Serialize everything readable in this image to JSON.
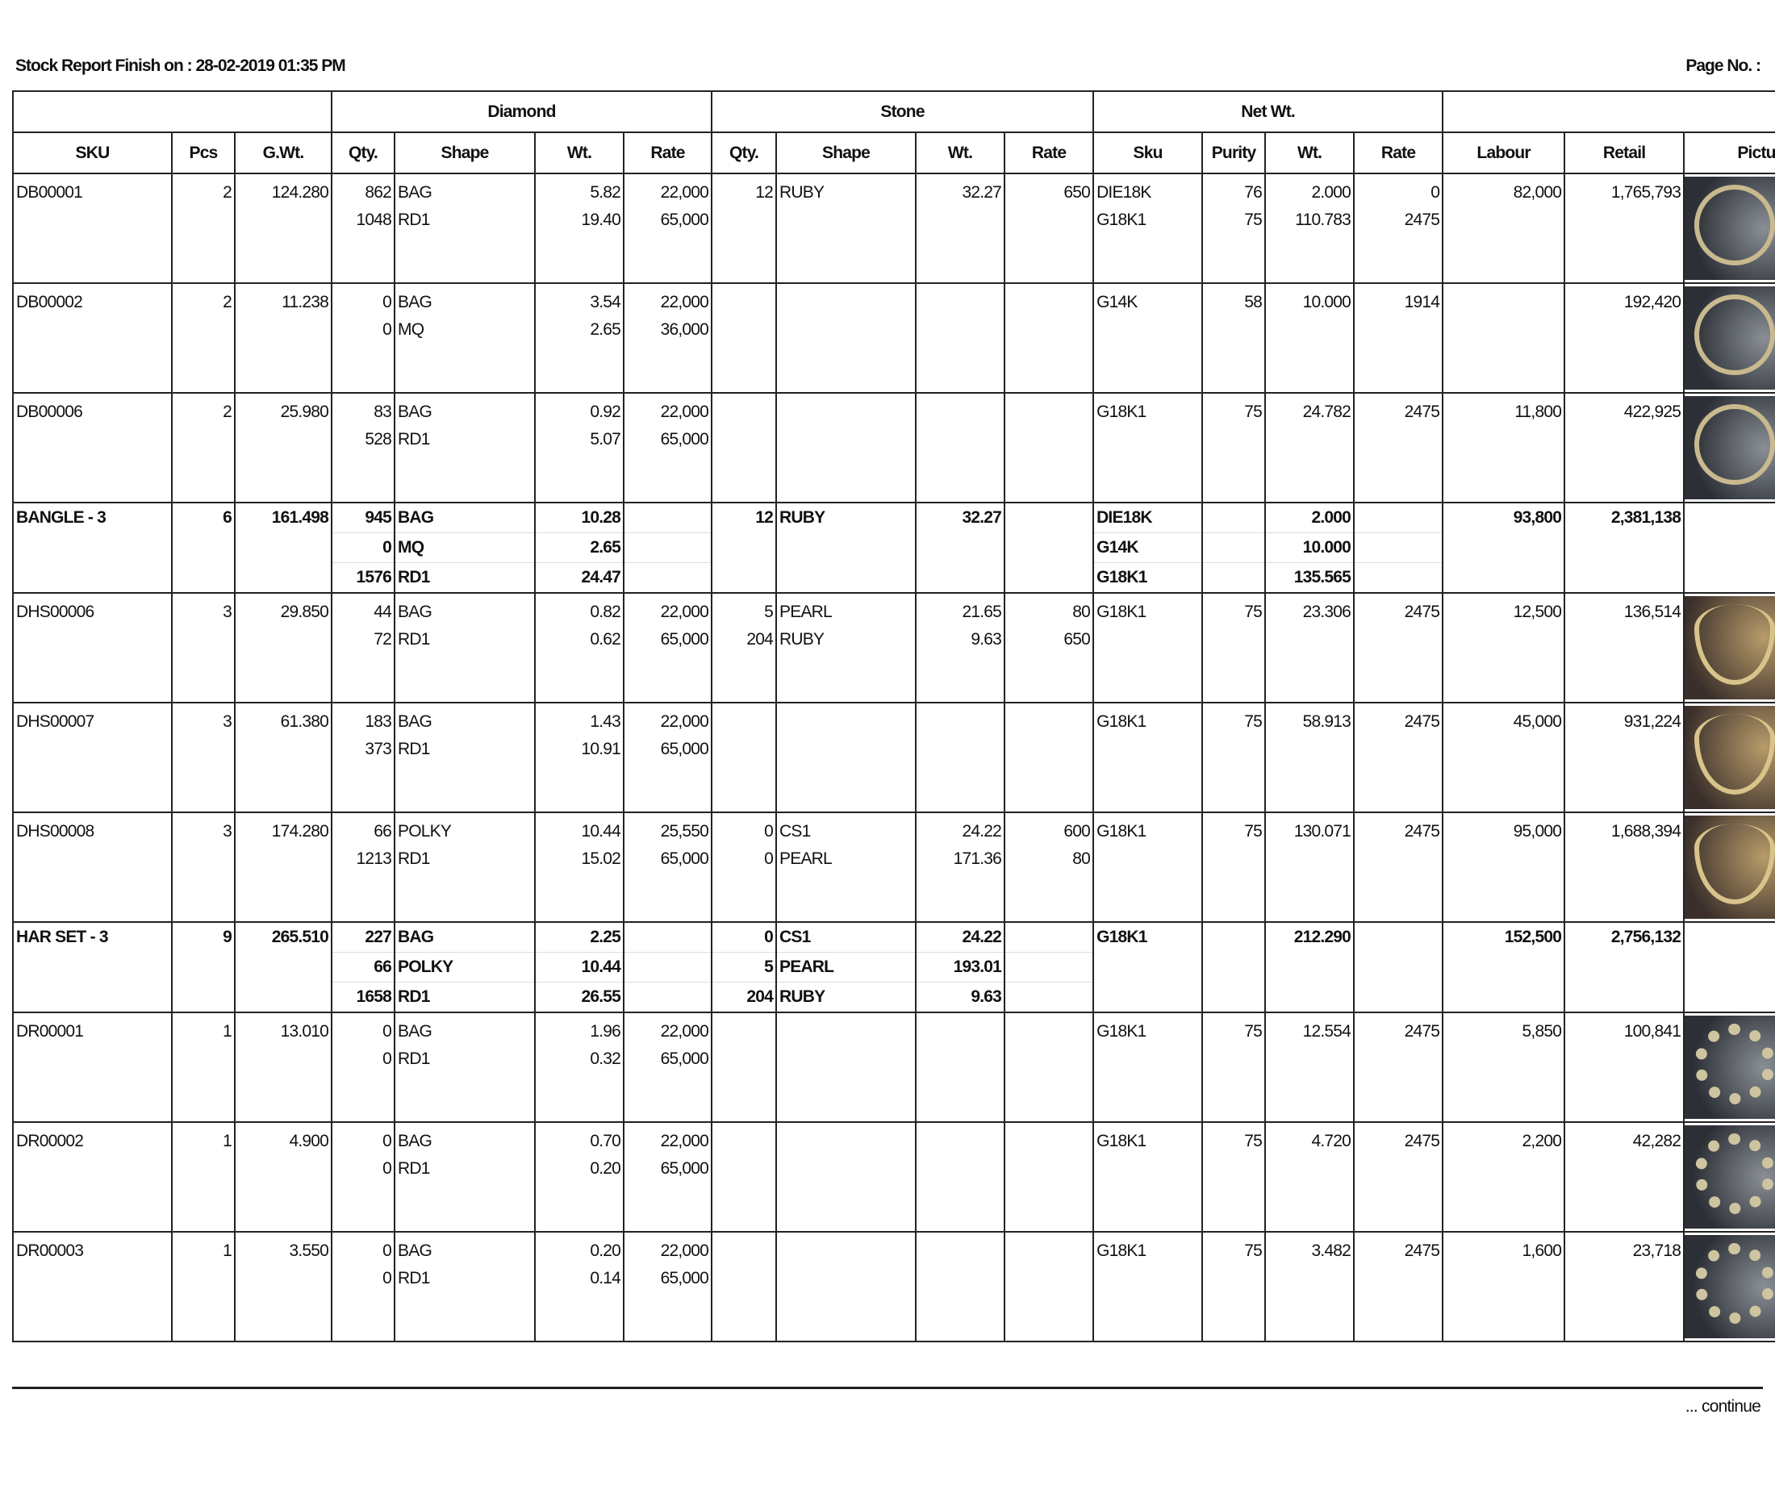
{
  "header": {
    "title": "Stock Report Finish on : 28-02-2019 01:35 PM",
    "page_label": "Page No. :"
  },
  "groups": {
    "diamond": "Diamond",
    "stone": "Stone",
    "net_wt": "Net Wt."
  },
  "columns": [
    "SKU",
    "Pcs",
    "G.Wt.",
    "Qty.",
    "Shape",
    "Wt.",
    "Rate",
    "Qty.",
    "Shape",
    "Wt.",
    "Rate",
    "Sku",
    "Purity",
    "Wt.",
    "Rate",
    "Labour",
    "Retail",
    "Picture"
  ],
  "rows": [
    {
      "type": "item",
      "sku": "DB00001",
      "pcs": "2",
      "gwt": "124.280",
      "diamond": [
        {
          "qty": "862",
          "shape": "BAG",
          "wt": "5.82",
          "rate": "22,000"
        },
        {
          "qty": "1048",
          "shape": "RD1",
          "wt": "19.40",
          "rate": "65,000"
        }
      ],
      "stone": [
        {
          "qty": "12",
          "shape": "RUBY",
          "wt": "32.27",
          "rate": "650"
        }
      ],
      "metal": [
        {
          "sku": "DIE18K",
          "purity": "76",
          "wt": "2.000",
          "rate": "0"
        },
        {
          "sku": "G18K1",
          "purity": "75",
          "wt": "110.783",
          "rate": "2475"
        }
      ],
      "labour": "82,000",
      "retail": "1,765,793",
      "picture": "bangle-photo"
    },
    {
      "type": "item",
      "sku": "DB00002",
      "pcs": "2",
      "gwt": "11.238",
      "diamond": [
        {
          "qty": "0",
          "shape": "BAG",
          "wt": "3.54",
          "rate": "22,000"
        },
        {
          "qty": "0",
          "shape": "MQ",
          "wt": "2.65",
          "rate": "36,000"
        }
      ],
      "stone": [],
      "metal": [
        {
          "sku": "G14K",
          "purity": "58",
          "wt": "10.000",
          "rate": "1914"
        }
      ],
      "labour": "",
      "retail": "192,420",
      "picture": "bangle-photo"
    },
    {
      "type": "item",
      "sku": "DB00006",
      "pcs": "2",
      "gwt": "25.980",
      "diamond": [
        {
          "qty": "83",
          "shape": "BAG",
          "wt": "0.92",
          "rate": "22,000"
        },
        {
          "qty": "528",
          "shape": "RD1",
          "wt": "5.07",
          "rate": "65,000"
        }
      ],
      "stone": [],
      "metal": [
        {
          "sku": "G18K1",
          "purity": "75",
          "wt": "24.782",
          "rate": "2475"
        }
      ],
      "labour": "11,800",
      "retail": "422,925",
      "picture": "bangle-photo"
    },
    {
      "type": "sum",
      "sku": "BANGLE - 3",
      "pcs": "6",
      "gwt": "161.498",
      "diamond": [
        {
          "qty": "945",
          "shape": "BAG",
          "wt": "10.28",
          "rate": ""
        },
        {
          "qty": "0",
          "shape": "MQ",
          "wt": "2.65",
          "rate": ""
        },
        {
          "qty": "1576",
          "shape": "RD1",
          "wt": "24.47",
          "rate": ""
        }
      ],
      "stone": [
        {
          "qty": "12",
          "shape": "RUBY",
          "wt": "32.27",
          "rate": ""
        }
      ],
      "metal": [
        {
          "sku": "DIE18K",
          "purity": "",
          "wt": "2.000",
          "rate": ""
        },
        {
          "sku": "G14K",
          "purity": "",
          "wt": "10.000",
          "rate": ""
        },
        {
          "sku": "G18K1",
          "purity": "",
          "wt": "135.565",
          "rate": ""
        }
      ],
      "labour": "93,800",
      "retail": "2,381,138"
    },
    {
      "type": "item",
      "sku": "DHS00006",
      "pcs": "3",
      "gwt": "29.850",
      "diamond": [
        {
          "qty": "44",
          "shape": "BAG",
          "wt": "0.82",
          "rate": "22,000"
        },
        {
          "qty": "72",
          "shape": "RD1",
          "wt": "0.62",
          "rate": "65,000"
        }
      ],
      "stone": [
        {
          "qty": "5",
          "shape": "PEARL",
          "wt": "21.65",
          "rate": "80"
        },
        {
          "qty": "204",
          "shape": "RUBY",
          "wt": "9.63",
          "rate": "650"
        }
      ],
      "metal": [
        {
          "sku": "G18K1",
          "purity": "75",
          "wt": "23.306",
          "rate": "2475"
        }
      ],
      "labour": "12,500",
      "retail": "136,514",
      "picture": "necklace-set-photo"
    },
    {
      "type": "item",
      "sku": "DHS00007",
      "pcs": "3",
      "gwt": "61.380",
      "diamond": [
        {
          "qty": "183",
          "shape": "BAG",
          "wt": "1.43",
          "rate": "22,000"
        },
        {
          "qty": "373",
          "shape": "RD1",
          "wt": "10.91",
          "rate": "65,000"
        }
      ],
      "stone": [],
      "metal": [
        {
          "sku": "G18K1",
          "purity": "75",
          "wt": "58.913",
          "rate": "2475"
        }
      ],
      "labour": "45,000",
      "retail": "931,224",
      "picture": "necklace-set-photo"
    },
    {
      "type": "item",
      "sku": "DHS00008",
      "pcs": "3",
      "gwt": "174.280",
      "diamond": [
        {
          "qty": "66",
          "shape": "POLKY",
          "wt": "10.44",
          "rate": "25,550"
        },
        {
          "qty": "1213",
          "shape": "RD1",
          "wt": "15.02",
          "rate": "65,000"
        }
      ],
      "stone": [
        {
          "qty": "0",
          "shape": "CS1",
          "wt": "24.22",
          "rate": "600"
        },
        {
          "qty": "0",
          "shape": "PEARL",
          "wt": "171.36",
          "rate": "80"
        }
      ],
      "metal": [
        {
          "sku": "G18K1",
          "purity": "75",
          "wt": "130.071",
          "rate": "2475"
        }
      ],
      "labour": "95,000",
      "retail": "1,688,394",
      "picture": "necklace-set-photo"
    },
    {
      "type": "sum",
      "sku": "HAR SET - 3",
      "pcs": "9",
      "gwt": "265.510",
      "diamond": [
        {
          "qty": "227",
          "shape": "BAG",
          "wt": "2.25",
          "rate": ""
        },
        {
          "qty": "66",
          "shape": "POLKY",
          "wt": "10.44",
          "rate": ""
        },
        {
          "qty": "1658",
          "shape": "RD1",
          "wt": "26.55",
          "rate": ""
        }
      ],
      "stone": [
        {
          "qty": "0",
          "shape": "CS1",
          "wt": "24.22",
          "rate": ""
        },
        {
          "qty": "5",
          "shape": "PEARL",
          "wt": "193.01",
          "rate": ""
        },
        {
          "qty": "204",
          "shape": "RUBY",
          "wt": "9.63",
          "rate": ""
        }
      ],
      "metal": [
        {
          "sku": "G18K1",
          "purity": "",
          "wt": "212.290",
          "rate": ""
        }
      ],
      "labour": "152,500",
      "retail": "2,756,132"
    },
    {
      "type": "item",
      "sku": "DR00001",
      "pcs": "1",
      "gwt": "13.010",
      "diamond": [
        {
          "qty": "0",
          "shape": "BAG",
          "wt": "1.96",
          "rate": "22,000"
        },
        {
          "qty": "0",
          "shape": "RD1",
          "wt": "0.32",
          "rate": "65,000"
        }
      ],
      "stone": [],
      "metal": [
        {
          "sku": "G18K1",
          "purity": "75",
          "wt": "12.554",
          "rate": "2475"
        }
      ],
      "labour": "5,850",
      "retail": "100,841",
      "picture": "ring-photo"
    },
    {
      "type": "item",
      "sku": "DR00002",
      "pcs": "1",
      "gwt": "4.900",
      "diamond": [
        {
          "qty": "0",
          "shape": "BAG",
          "wt": "0.70",
          "rate": "22,000"
        },
        {
          "qty": "0",
          "shape": "RD1",
          "wt": "0.20",
          "rate": "65,000"
        }
      ],
      "stone": [],
      "metal": [
        {
          "sku": "G18K1",
          "purity": "75",
          "wt": "4.720",
          "rate": "2475"
        }
      ],
      "labour": "2,200",
      "retail": "42,282",
      "picture": "ring-photo"
    },
    {
      "type": "item",
      "sku": "DR00003",
      "pcs": "1",
      "gwt": "3.550",
      "diamond": [
        {
          "qty": "0",
          "shape": "BAG",
          "wt": "0.20",
          "rate": "22,000"
        },
        {
          "qty": "0",
          "shape": "RD1",
          "wt": "0.14",
          "rate": "65,000"
        }
      ],
      "stone": [],
      "metal": [
        {
          "sku": "G18K1",
          "purity": "75",
          "wt": "3.482",
          "rate": "2475"
        }
      ],
      "labour": "1,600",
      "retail": "23,718",
      "picture": "ring-photo"
    }
  ],
  "footer": {
    "continue": "... continue"
  }
}
